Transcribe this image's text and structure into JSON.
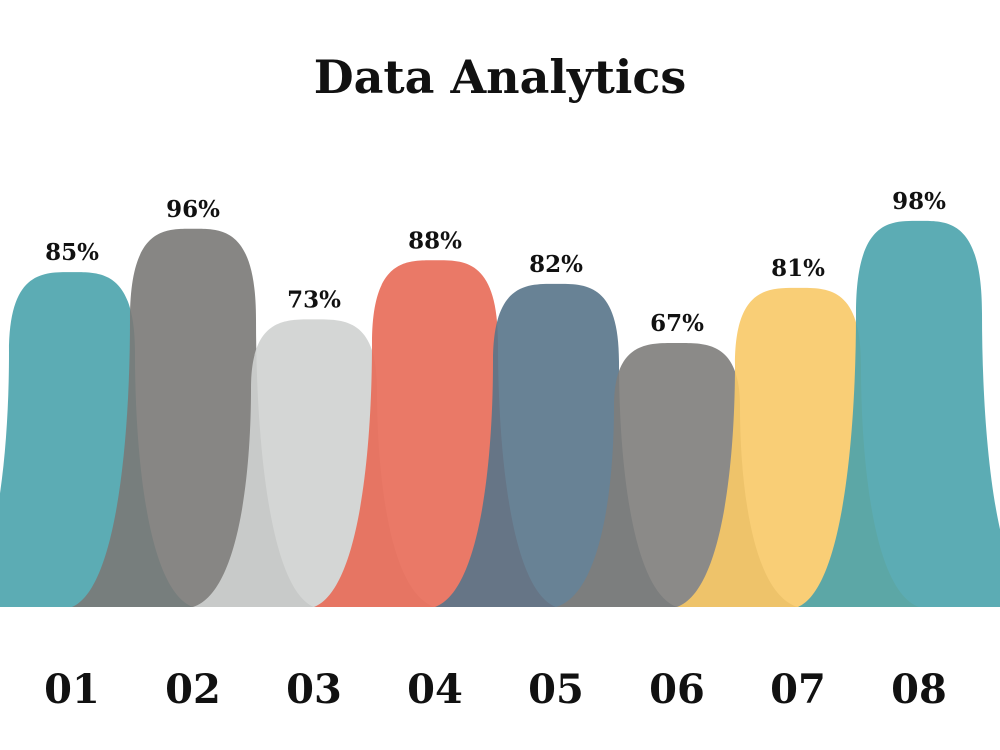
{
  "chart_data": {
    "type": "area",
    "title": "Data Analytics",
    "xlabel": "",
    "ylabel": "",
    "ylim": [
      0,
      100
    ],
    "grid": false,
    "legend": "none",
    "categories": [
      "01",
      "02",
      "03",
      "04",
      "05",
      "06",
      "07",
      "08"
    ],
    "values": [
      85,
      96,
      73,
      88,
      82,
      67,
      81,
      98
    ],
    "value_labels": [
      "85%",
      "96%",
      "73%",
      "88%",
      "82%",
      "67%",
      "81%",
      "98%"
    ],
    "colors": [
      "#4aa3ac",
      "#7a7977",
      "#cfd1d0",
      "#e86a57",
      "#587489",
      "#7e7d7b",
      "#f8c967",
      "#4aa3ac"
    ]
  }
}
